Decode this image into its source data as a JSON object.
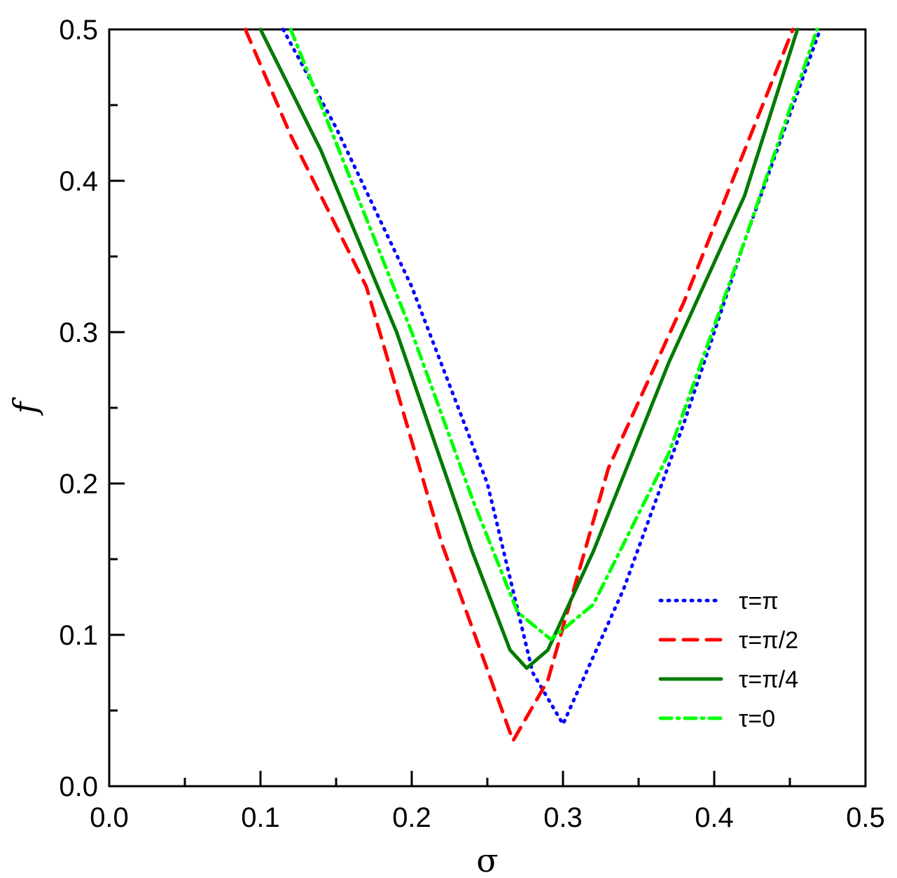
{
  "chart_data": {
    "type": "line",
    "title": "",
    "xlabel": "σ",
    "ylabel": "f",
    "xlim": [
      0.0,
      0.5
    ],
    "ylim": [
      0.0,
      0.5
    ],
    "xticks": [
      "0.0",
      "0.1",
      "0.2",
      "0.3",
      "0.4",
      "0.5"
    ],
    "yticks": [
      "0.0",
      "0.1",
      "0.2",
      "0.3",
      "0.4",
      "0.5"
    ],
    "legend_position": "bottom-right",
    "series": [
      {
        "name": "τ=π",
        "color": "#0000ff",
        "style": "dotted",
        "points": [
          [
            0.115,
            0.5
          ],
          [
            0.15,
            0.435
          ],
          [
            0.2,
            0.33
          ],
          [
            0.25,
            0.2
          ],
          [
            0.28,
            0.075
          ],
          [
            0.3,
            0.041
          ],
          [
            0.34,
            0.13
          ],
          [
            0.38,
            0.24
          ],
          [
            0.42,
            0.36
          ],
          [
            0.47,
            0.5
          ]
        ]
      },
      {
        "name": "τ=π/2",
        "color": "#ff0000",
        "style": "dashed",
        "points": [
          [
            0.09,
            0.5
          ],
          [
            0.12,
            0.43
          ],
          [
            0.17,
            0.33
          ],
          [
            0.22,
            0.16
          ],
          [
            0.267,
            0.03
          ],
          [
            0.29,
            0.07
          ],
          [
            0.33,
            0.21
          ],
          [
            0.38,
            0.32
          ],
          [
            0.42,
            0.42
          ],
          [
            0.452,
            0.5
          ]
        ]
      },
      {
        "name": "τ=π/4",
        "color": "#007a00",
        "style": "solid",
        "points": [
          [
            0.1,
            0.5
          ],
          [
            0.14,
            0.42
          ],
          [
            0.19,
            0.3
          ],
          [
            0.24,
            0.155
          ],
          [
            0.265,
            0.09
          ],
          [
            0.276,
            0.078
          ],
          [
            0.29,
            0.09
          ],
          [
            0.32,
            0.155
          ],
          [
            0.37,
            0.28
          ],
          [
            0.42,
            0.39
          ],
          [
            0.455,
            0.5
          ]
        ]
      },
      {
        "name": "τ=0",
        "color": "#00ff00",
        "style": "dashdot",
        "points": [
          [
            0.12,
            0.5
          ],
          [
            0.16,
            0.4
          ],
          [
            0.2,
            0.3
          ],
          [
            0.24,
            0.19
          ],
          [
            0.27,
            0.115
          ],
          [
            0.292,
            0.097
          ],
          [
            0.32,
            0.12
          ],
          [
            0.37,
            0.22
          ],
          [
            0.42,
            0.36
          ],
          [
            0.468,
            0.5
          ]
        ]
      }
    ]
  }
}
